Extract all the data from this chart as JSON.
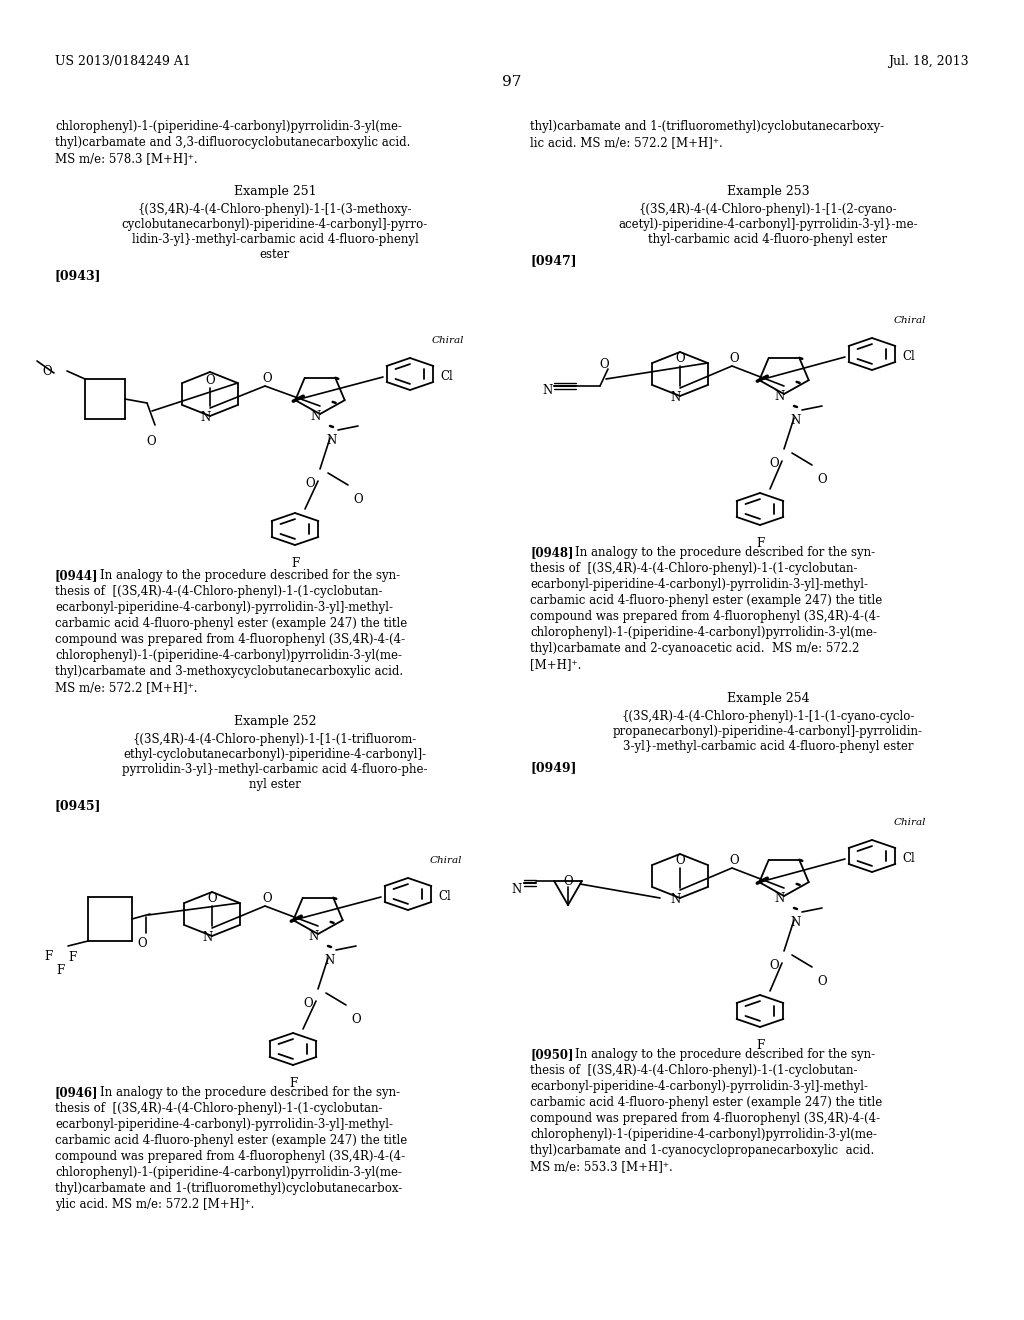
{
  "background_color": "#ffffff",
  "header_left": "US 2013/0184249 A1",
  "header_right": "Jul. 18, 2013",
  "page_number": "97",
  "font_color": "#000000",
  "intro_left_lines": [
    "chlorophenyl)-1-(piperidine-4-carbonyl)pyrrolidin-3-yl(me-",
    "thyl)carbamate and 3,3-difluorocyclobutanecarboxylic acid.",
    "MS m/e: 578.3 [M+H]⁺."
  ],
  "intro_right_lines": [
    "thyl)carbamate and 1-(trifluoromethyl)cyclobutanecarboxy-",
    "lic acid. MS m/e: 572.2 [M+H]⁺."
  ],
  "ex251_title": "Example 251",
  "ex251_name_lines": [
    "{(3S,4R)-4-(4-Chloro-phenyl)-1-[1-(3-methoxy-",
    "cyclobutanecarbonyl)-piperidine-4-carbonyl]-pyrro-",
    "lidin-3-yl}-methyl-carbamic acid 4-fluoro-phenyl",
    "ester"
  ],
  "ex251_ref": "[0943]",
  "ex251_desc_lines": [
    "[0944] In analogy to the procedure described for the syn-",
    "thesis of  [(3S,4R)-4-(4-Chloro-phenyl)-1-(1-cyclobutan-",
    "ecarbonyl-piperidine-4-carbonyl)-pyrrolidin-3-yl]-methyl-",
    "carbamic acid 4-fluoro-phenyl ester (example 247) the title",
    "compound was prepared from 4-fluorophenyl (3S,4R)-4-(4-",
    "chlorophenyl)-1-(piperidine-4-carbonyl)pyrrolidin-3-yl(me-",
    "thyl)carbamate and 3-methoxycyclobutanecarboxylic acid.",
    "MS m/e: 572.2 [M+H]⁺."
  ],
  "ex252_title": "Example 252",
  "ex252_name_lines": [
    "{(3S,4R)-4-(4-Chloro-phenyl)-1-[1-(1-trifluorom-",
    "ethyl-cyclobutanecarbonyl)-piperidine-4-carbonyl]-",
    "pyrrolidin-3-yl}-methyl-carbamic acid 4-fluoro-phe-",
    "nyl ester"
  ],
  "ex252_ref": "[0945]",
  "ex252_desc_lines": [
    "[0946] In analogy to the procedure described for the syn-",
    "thesis of  [(3S,4R)-4-(4-Chloro-phenyl)-1-(1-cyclobutan-",
    "ecarbonyl-piperidine-4-carbonyl)-pyrrolidin-3-yl]-methyl-",
    "carbamic acid 4-fluoro-phenyl ester (example 247) the title",
    "compound was prepared from 4-fluorophenyl (3S,4R)-4-(4-",
    "chlorophenyl)-1-(piperidine-4-carbonyl)pyrrolidin-3-yl(me-",
    "thyl)carbamate and 1-(trifluoromethyl)cyclobutanecarbox-",
    "ylic acid. MS m/e: 572.2 [M+H]⁺."
  ],
  "ex253_title": "Example 253",
  "ex253_name_lines": [
    "{(3S,4R)-4-(4-Chloro-phenyl)-1-[1-(2-cyano-",
    "acetyl)-piperidine-4-carbonyl]-pyrrolidin-3-yl}-me-",
    "thyl-carbamic acid 4-fluoro-phenyl ester"
  ],
  "ex253_ref": "[0947]",
  "ex253_desc_lines": [
    "[0948] In analogy to the procedure described for the syn-",
    "thesis of  [(3S,4R)-4-(4-Chloro-phenyl)-1-(1-cyclobutan-",
    "ecarbonyl-piperidine-4-carbonyl)-pyrrolidin-3-yl]-methyl-",
    "carbamic acid 4-fluoro-phenyl ester (example 247) the title",
    "compound was prepared from 4-fluorophenyl (3S,4R)-4-(4-",
    "chlorophenyl)-1-(piperidine-4-carbonyl)pyrrolidin-3-yl(me-",
    "thyl)carbamate and 2-cyanoacetic acid.  MS m/e: 572.2",
    "[M+H]⁺."
  ],
  "ex254_title": "Example 254",
  "ex254_name_lines": [
    "{(3S,4R)-4-(4-Chloro-phenyl)-1-[1-(1-cyano-cyclo-",
    "propanecarbonyl)-piperidine-4-carbonyl]-pyrrolidin-",
    "3-yl}-methyl-carbamic acid 4-fluoro-phenyl ester"
  ],
  "ex254_ref": "[0949]",
  "ex254_desc_lines": [
    "[0950] In analogy to the procedure described for the syn-",
    "thesis of  [(3S,4R)-4-(4-Chloro-phenyl)-1-(1-cyclobutan-",
    "ecarbonyl-piperidine-4-carbonyl)-pyrrolidin-3-yl]-methyl-",
    "carbamic acid 4-fluoro-phenyl ester (example 247) the title",
    "compound was prepared from 4-fluorophenyl (3S,4R)-4-(4-",
    "chlorophenyl)-1-(piperidine-4-carbonyl)pyrrolidin-3-yl(me-",
    "thyl)carbamate and 1-cyanocyclopropanecarboxylic  acid.",
    "MS m/e: 553.3 [M+H]⁺."
  ]
}
